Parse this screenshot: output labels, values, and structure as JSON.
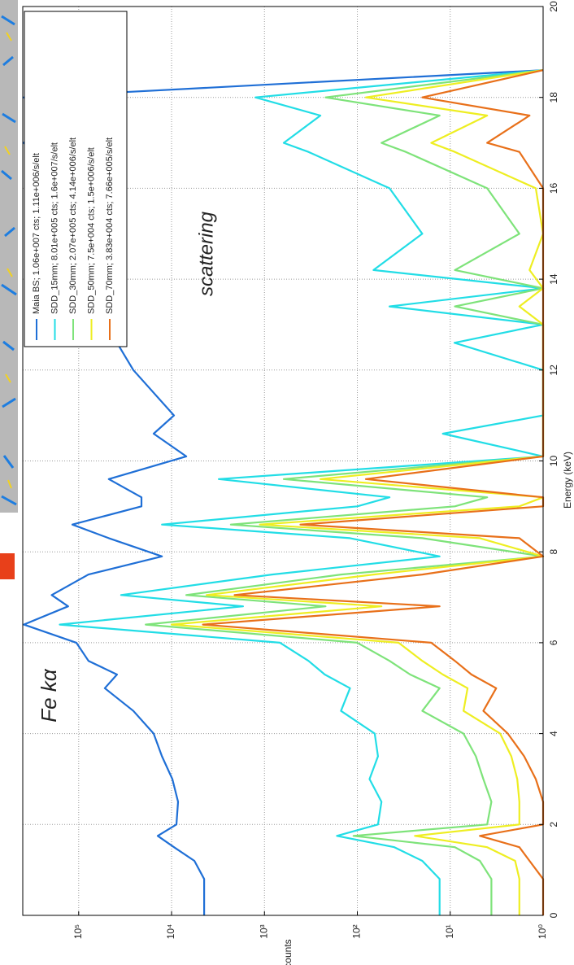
{
  "chart_data": {
    "type": "line",
    "x_label": "Energy (keV)",
    "y_label": "counts",
    "yscale": "log",
    "grid": true,
    "legend": "upper-left",
    "annotations": [
      "Fe kα",
      "scattering"
    ],
    "xlim": [
      0,
      20
    ],
    "xticks": [
      0,
      2,
      4,
      6,
      8,
      10,
      12,
      14,
      16,
      18,
      20
    ],
    "ylim": [
      1,
      400000
    ],
    "yticks": [
      {
        "value": 1,
        "label": "10⁰"
      },
      {
        "value": 10,
        "label": "10¹"
      },
      {
        "value": 100,
        "label": "10²"
      },
      {
        "value": 1000,
        "label": "10³"
      },
      {
        "value": 10000,
        "label": "10⁴"
      },
      {
        "value": 100000,
        "label": "10⁵"
      }
    ],
    "x": [
      0,
      0.8,
      1.2,
      1.5,
      1.75,
      2.0,
      2.5,
      3.0,
      3.5,
      4.0,
      4.5,
      5.0,
      5.3,
      5.6,
      6.0,
      6.4,
      6.8,
      7.05,
      7.5,
      7.9,
      8.3,
      8.6,
      9.0,
      9.2,
      9.6,
      10.1,
      10.6,
      11.0,
      12.0,
      12.6,
      13.0,
      13.4,
      13.8,
      14.2,
      15.0,
      16.0,
      16.8,
      17.0,
      17.6,
      18.0,
      18.6
    ],
    "series": [
      {
        "name": "Maia BS; 1.06e+007 cts; 1.11e+006/s/elt",
        "color": "#1f6fd6",
        "values": [
          4460,
          4460,
          5680,
          9420,
          14100,
          8860,
          8510,
          9800,
          12700,
          15600,
          25800,
          52300,
          38700,
          78500,
          106000,
          390000,
          130000,
          195000,
          78500,
          12700,
          47400,
          117000,
          21100,
          21100,
          47400,
          6950,
          15600,
          9420,
          25800,
          38700,
          35000,
          64100,
          38700,
          86800,
          144000,
          215000,
          323000,
          390000,
          215000,
          390000,
          1
        ]
      },
      {
        "name": "SDD_15mm; 8.01e+005 cts; 1.6e+007/s/elt",
        "color": "#22dde6",
        "values": [
          13,
          13,
          20,
          40,
          166,
          60,
          55,
          74,
          60,
          65,
          150,
          120,
          224,
          336,
          680,
          160000,
          1700,
          35000,
          830,
          13,
          120,
          12700,
          100,
          45,
          3100,
          1,
          12,
          1,
          1,
          9,
          1,
          45,
          1,
          67,
          20,
          45,
          336,
          620,
          250,
          1250,
          1
        ]
      },
      {
        "name": "SDD_30mm; 2.07e+005 cts; 4.14e+006/s/elt",
        "color": "#7ee37a",
        "values": [
          3.6,
          3.6,
          4.8,
          8.9,
          110,
          4,
          3.6,
          4.4,
          5.3,
          7.2,
          20,
          13,
          27,
          45,
          100,
          19000,
          220,
          6950,
          150,
          1,
          20,
          2300,
          8.9,
          4,
          620,
          1,
          1,
          1,
          1,
          1,
          1,
          8.9,
          1,
          8.9,
          1.8,
          4,
          30,
          55,
          13,
          220,
          1
        ]
      },
      {
        "name": "SDD_50mm; 7.5e+004 cts; 1.5e+006/s/elt",
        "color": "#eeee22",
        "values": [
          1.8,
          1.8,
          2,
          4,
          24,
          1.8,
          1.8,
          1.9,
          2.2,
          2.9,
          7.2,
          6.5,
          12,
          20,
          36,
          10000,
          55,
          4200,
          67,
          1,
          4.8,
          1120,
          1.8,
          1,
          250,
          1,
          1,
          1,
          1,
          1,
          1,
          1.8,
          1,
          1.4,
          1,
          1.2,
          8.9,
          16,
          4,
          81,
          1
        ]
      },
      {
        "name": "SDD_70mm; 3.83e+004 cts; 7.66e+005/s/elt",
        "color": "#e8701a",
        "values": [
          1,
          1,
          1.4,
          1.8,
          4.8,
          1,
          1,
          1.2,
          1.6,
          2.4,
          4.4,
          3.2,
          5.9,
          8.9,
          16,
          4600,
          13,
          2100,
          20,
          1,
          1.8,
          410,
          1,
          1,
          81,
          1,
          1,
          1,
          1,
          1,
          1,
          1,
          1,
          1,
          1,
          1,
          1.8,
          4,
          1.4,
          20,
          1
        ]
      }
    ]
  }
}
